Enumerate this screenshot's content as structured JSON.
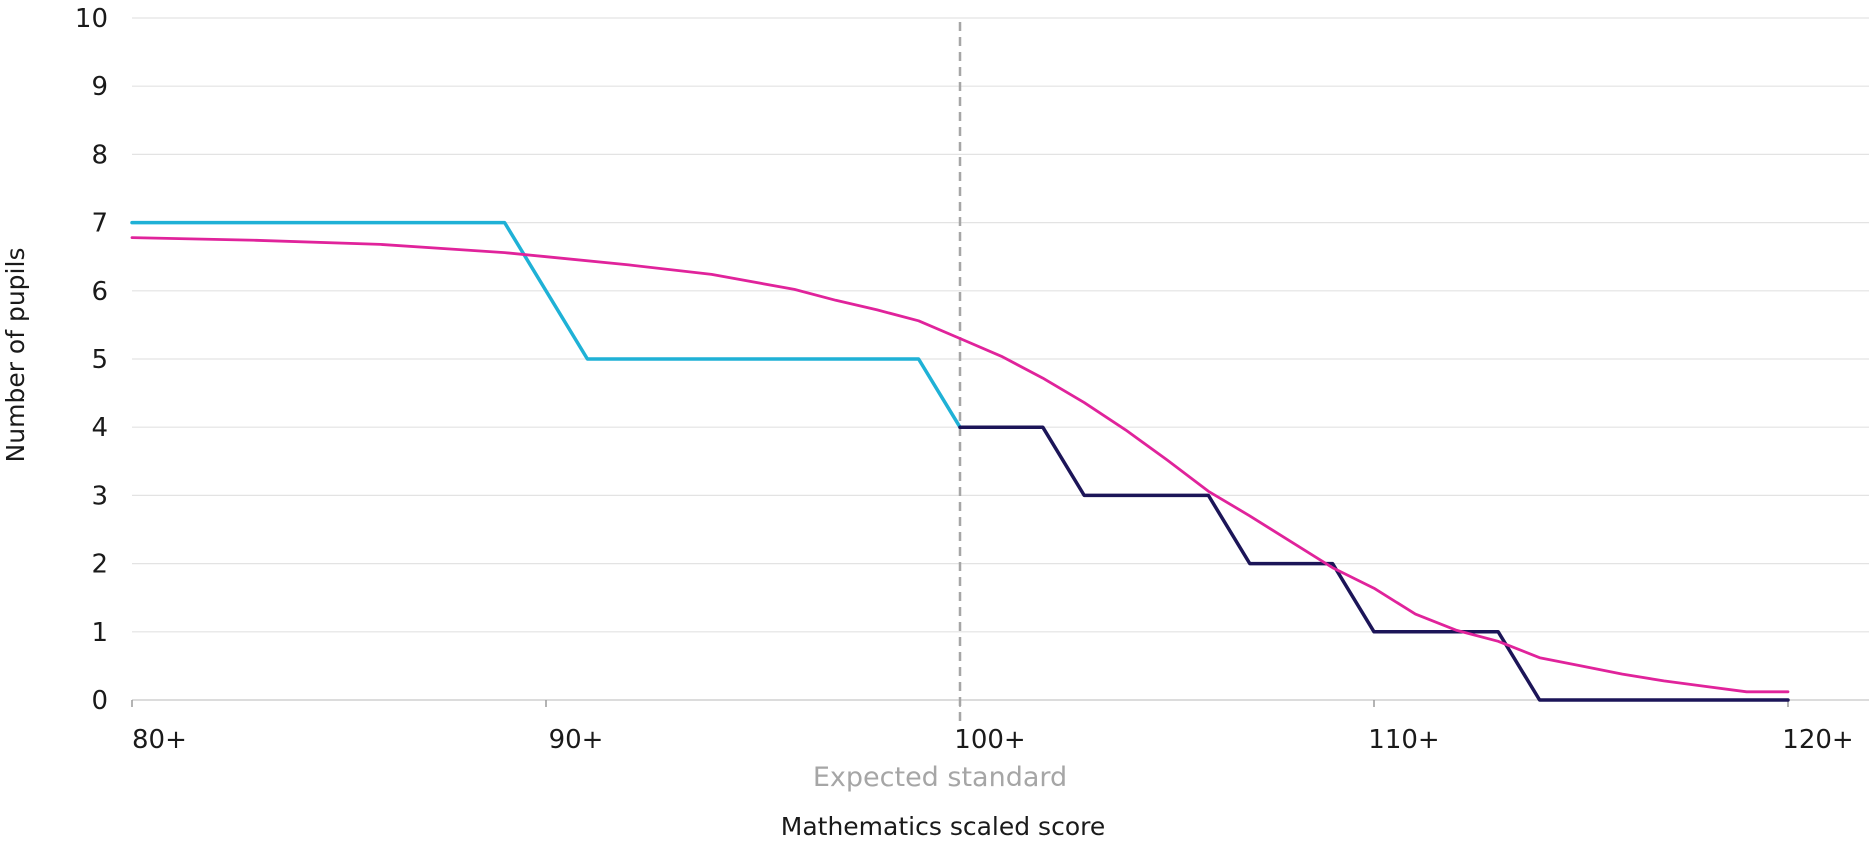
{
  "chart_data": {
    "type": "line",
    "title": "",
    "xlabel": "Mathematics scaled score",
    "ylabel": "Number of pupils",
    "xlim": [
      80,
      120
    ],
    "ylim": [
      0,
      10
    ],
    "x_ticks": [
      {
        "value": 80,
        "label": "80+"
      },
      {
        "value": 90,
        "label": "90+"
      },
      {
        "value": 100,
        "label": "100+"
      },
      {
        "value": 110,
        "label": "110+"
      },
      {
        "value": 120,
        "label": "120+"
      }
    ],
    "y_ticks": [
      0,
      1,
      2,
      3,
      4,
      5,
      6,
      7,
      8,
      9,
      10
    ],
    "grid": "horizontal",
    "legend": "none",
    "reference_line": {
      "x": 100,
      "label": "Expected standard",
      "color": "#a6a6a6",
      "style": "dashed"
    },
    "series": [
      {
        "color": "#1fb1d6",
        "points": [
          [
            80,
            7
          ],
          [
            89,
            7
          ],
          [
            91,
            5
          ],
          [
            99,
            5
          ],
          [
            100,
            4
          ]
        ]
      },
      {
        "color": "#1c1558",
        "points": [
          [
            100,
            4
          ],
          [
            102,
            4
          ],
          [
            103,
            3
          ],
          [
            106,
            3
          ],
          [
            107,
            2
          ],
          [
            109,
            2
          ],
          [
            110,
            1
          ],
          [
            113,
            1
          ],
          [
            114,
            0
          ],
          [
            120,
            0
          ]
        ]
      },
      {
        "color": "#e0239b",
        "points": [
          [
            80,
            6.78
          ],
          [
            83,
            6.74
          ],
          [
            86,
            6.68
          ],
          [
            88,
            6.6
          ],
          [
            89,
            6.56
          ],
          [
            90,
            6.5
          ],
          [
            92,
            6.38
          ],
          [
            94,
            6.24
          ],
          [
            96,
            6.02
          ],
          [
            97,
            5.86
          ],
          [
            98,
            5.72
          ],
          [
            99,
            5.56
          ],
          [
            100,
            5.3
          ],
          [
            101,
            5.04
          ],
          [
            102,
            4.72
          ],
          [
            103,
            4.36
          ],
          [
            104,
            3.96
          ],
          [
            105,
            3.52
          ],
          [
            106,
            3.06
          ],
          [
            107,
            2.7
          ],
          [
            108,
            2.32
          ],
          [
            109,
            1.94
          ],
          [
            110,
            1.64
          ],
          [
            111,
            1.26
          ],
          [
            112,
            1.02
          ],
          [
            113,
            0.86
          ],
          [
            114,
            0.62
          ],
          [
            115,
            0.5
          ],
          [
            116,
            0.38
          ],
          [
            117,
            0.28
          ],
          [
            118,
            0.2
          ],
          [
            119,
            0.12
          ],
          [
            120,
            0.12
          ]
        ]
      }
    ]
  }
}
